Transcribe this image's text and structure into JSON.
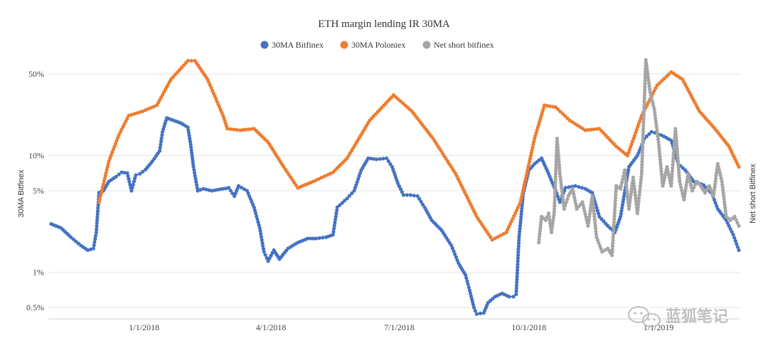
{
  "chart_data": {
    "type": "line",
    "title": "ETH margin lending IR 30MA",
    "ylabel": "30MA Bitfinex",
    "y2label": "Net short Bitfinex",
    "yscale": "log",
    "ylim": [
      0.4,
      70
    ],
    "yticks": [
      {
        "value": 0.5,
        "label": "0.5%"
      },
      {
        "value": 1,
        "label": "1%"
      },
      {
        "value": 5,
        "label": "5%"
      },
      {
        "value": 10,
        "label": "10%"
      },
      {
        "value": 50,
        "label": "50%"
      }
    ],
    "xlim": [
      "2017-10-25",
      "2019-02-28"
    ],
    "xticks": [
      {
        "value": "2018-01-01",
        "label": "1/1/2018"
      },
      {
        "value": "2018-04-01",
        "label": "4/1/2018"
      },
      {
        "value": "2018-07-01",
        "label": "7/1/2018"
      },
      {
        "value": "2018-10-01",
        "label": "10/1/2018"
      },
      {
        "value": "2019-01-01",
        "label": "1/1/2019"
      }
    ],
    "grid": true,
    "legend": "top-center",
    "series": [
      {
        "name": "30MA Bitfinex",
        "color": "#4472c4",
        "points": [
          [
            "2017-10-27",
            2.6
          ],
          [
            "2017-11-03",
            2.4
          ],
          [
            "2017-11-10",
            2.0
          ],
          [
            "2017-11-17",
            1.7
          ],
          [
            "2017-11-22",
            1.55
          ],
          [
            "2017-11-26",
            1.6
          ],
          [
            "2017-11-28",
            2.2
          ],
          [
            "2017-11-30",
            4.8
          ],
          [
            "2017-12-03",
            5.0
          ],
          [
            "2017-12-07",
            6.0
          ],
          [
            "2017-12-12",
            6.6
          ],
          [
            "2017-12-16",
            7.2
          ],
          [
            "2017-12-20",
            7.1
          ],
          [
            "2017-12-23",
            5.0
          ],
          [
            "2017-12-26",
            6.8
          ],
          [
            "2017-12-29",
            7.0
          ],
          [
            "2018-01-02",
            7.6
          ],
          [
            "2018-01-07",
            9.0
          ],
          [
            "2018-01-12",
            11.0
          ],
          [
            "2018-01-14",
            16.0
          ],
          [
            "2018-01-17",
            21.0
          ],
          [
            "2018-01-22",
            20.0
          ],
          [
            "2018-01-27",
            19.0
          ],
          [
            "2018-02-01",
            17.5
          ],
          [
            "2018-02-03",
            12.5
          ],
          [
            "2018-02-05",
            8.0
          ],
          [
            "2018-02-08",
            5.0
          ],
          [
            "2018-02-12",
            5.2
          ],
          [
            "2018-02-18",
            5.0
          ],
          [
            "2018-02-26",
            5.2
          ],
          [
            "2018-03-02",
            5.3
          ],
          [
            "2018-03-06",
            4.5
          ],
          [
            "2018-03-09",
            5.5
          ],
          [
            "2018-03-15",
            5.0
          ],
          [
            "2018-03-20",
            3.6
          ],
          [
            "2018-03-24",
            2.4
          ],
          [
            "2018-03-27",
            1.5
          ],
          [
            "2018-03-30",
            1.25
          ],
          [
            "2018-04-03",
            1.55
          ],
          [
            "2018-04-07",
            1.3
          ],
          [
            "2018-04-13",
            1.6
          ],
          [
            "2018-04-20",
            1.8
          ],
          [
            "2018-04-27",
            1.95
          ],
          [
            "2018-05-03",
            1.95
          ],
          [
            "2018-05-10",
            2.0
          ],
          [
            "2018-05-15",
            2.1
          ],
          [
            "2018-05-18",
            3.6
          ],
          [
            "2018-05-25",
            4.3
          ],
          [
            "2018-05-30",
            5.0
          ],
          [
            "2018-06-04",
            7.5
          ],
          [
            "2018-06-09",
            9.5
          ],
          [
            "2018-06-15",
            9.3
          ],
          [
            "2018-06-22",
            9.5
          ],
          [
            "2018-06-26",
            8.0
          ],
          [
            "2018-06-30",
            5.8
          ],
          [
            "2018-07-04",
            4.6
          ],
          [
            "2018-07-09",
            4.6
          ],
          [
            "2018-07-14",
            4.5
          ],
          [
            "2018-07-19",
            3.6
          ],
          [
            "2018-07-24",
            2.8
          ],
          [
            "2018-07-31",
            2.3
          ],
          [
            "2018-08-07",
            1.7
          ],
          [
            "2018-08-12",
            1.2
          ],
          [
            "2018-08-17",
            0.95
          ],
          [
            "2018-08-20",
            0.7
          ],
          [
            "2018-08-23",
            0.5
          ],
          [
            "2018-08-25",
            0.44
          ],
          [
            "2018-08-30",
            0.45
          ],
          [
            "2018-09-02",
            0.55
          ],
          [
            "2018-09-07",
            0.62
          ],
          [
            "2018-09-12",
            0.66
          ],
          [
            "2018-09-17",
            0.62
          ],
          [
            "2018-09-20",
            0.62
          ],
          [
            "2018-09-22",
            0.65
          ],
          [
            "2018-09-24",
            2.0
          ],
          [
            "2018-09-27",
            4.7
          ],
          [
            "2018-10-01",
            7.5
          ],
          [
            "2018-10-05",
            8.5
          ],
          [
            "2018-10-10",
            9.5
          ],
          [
            "2018-10-15",
            7.0
          ],
          [
            "2018-10-20",
            5.0
          ],
          [
            "2018-10-23",
            4.0
          ],
          [
            "2018-10-27",
            5.3
          ],
          [
            "2018-11-03",
            5.5
          ],
          [
            "2018-11-10",
            5.2
          ],
          [
            "2018-11-15",
            4.8
          ],
          [
            "2018-11-20",
            3.0
          ],
          [
            "2018-11-26",
            2.5
          ],
          [
            "2018-12-01",
            2.2
          ],
          [
            "2018-12-05",
            3.0
          ],
          [
            "2018-12-11",
            8.0
          ],
          [
            "2018-12-17",
            10.0
          ],
          [
            "2018-12-22",
            14.0
          ],
          [
            "2018-12-27",
            16.0
          ],
          [
            "2019-01-03",
            15.0
          ],
          [
            "2019-01-10",
            13.5
          ],
          [
            "2019-01-15",
            8.5
          ],
          [
            "2019-01-20",
            7.5
          ],
          [
            "2019-01-26",
            6.0
          ],
          [
            "2019-02-02",
            5.6
          ],
          [
            "2019-02-08",
            4.7
          ],
          [
            "2019-02-12",
            3.5
          ],
          [
            "2019-02-18",
            2.8
          ],
          [
            "2019-02-23",
            2.1
          ],
          [
            "2019-02-27",
            1.55
          ]
        ]
      },
      {
        "name": "30MA Poloniex",
        "color": "#ed7d31",
        "points": [
          [
            "2017-11-30",
            4.0
          ],
          [
            "2017-12-07",
            9.0
          ],
          [
            "2017-12-14",
            15.0
          ],
          [
            "2017-12-21",
            22.0
          ],
          [
            "2017-12-31",
            24.0
          ],
          [
            "2018-01-10",
            27.0
          ],
          [
            "2018-01-20",
            45.0
          ],
          [
            "2018-02-01",
            65.0
          ],
          [
            "2018-02-06",
            65.0
          ],
          [
            "2018-02-15",
            45.0
          ],
          [
            "2018-02-26",
            22.0
          ],
          [
            "2018-03-01",
            17.0
          ],
          [
            "2018-03-10",
            16.5
          ],
          [
            "2018-03-20",
            17.0
          ],
          [
            "2018-03-30",
            13.0
          ],
          [
            "2018-04-10",
            8.0
          ],
          [
            "2018-04-20",
            5.3
          ],
          [
            "2018-05-01",
            6.0
          ],
          [
            "2018-05-15",
            7.2
          ],
          [
            "2018-05-25",
            9.5
          ],
          [
            "2018-06-10",
            20.0
          ],
          [
            "2018-06-27",
            33.0
          ],
          [
            "2018-07-10",
            24.0
          ],
          [
            "2018-07-25",
            14.0
          ],
          [
            "2018-08-10",
            7.0
          ],
          [
            "2018-08-25",
            3.0
          ],
          [
            "2018-09-05",
            1.9
          ],
          [
            "2018-09-15",
            2.2
          ],
          [
            "2018-09-25",
            4.0
          ],
          [
            "2018-10-05",
            14.0
          ],
          [
            "2018-10-12",
            27.0
          ],
          [
            "2018-10-20",
            26.0
          ],
          [
            "2018-10-30",
            20.0
          ],
          [
            "2018-11-10",
            16.5
          ],
          [
            "2018-11-20",
            17.0
          ],
          [
            "2018-12-02",
            12.0
          ],
          [
            "2018-12-10",
            10.0
          ],
          [
            "2018-12-20",
            22.0
          ],
          [
            "2018-12-31",
            40.0
          ],
          [
            "2019-01-10",
            52.0
          ],
          [
            "2019-01-18",
            45.0
          ],
          [
            "2019-01-30",
            24.0
          ],
          [
            "2019-02-10",
            17.0
          ],
          [
            "2019-02-20",
            12.0
          ],
          [
            "2019-02-27",
            8.0
          ]
        ]
      },
      {
        "name": "Net short bitfinex",
        "color": "#a5a5a5",
        "points": [
          [
            "2018-10-08",
            1.8
          ],
          [
            "2018-10-10",
            3.0
          ],
          [
            "2018-10-13",
            2.8
          ],
          [
            "2018-10-15",
            3.2
          ],
          [
            "2018-10-17",
            2.2
          ],
          [
            "2018-10-19",
            3.3
          ],
          [
            "2018-10-21",
            14.0
          ],
          [
            "2018-10-23",
            7.0
          ],
          [
            "2018-10-26",
            3.5
          ],
          [
            "2018-10-29",
            4.5
          ],
          [
            "2018-11-01",
            5.2
          ],
          [
            "2018-11-04",
            3.5
          ],
          [
            "2018-11-08",
            4.0
          ],
          [
            "2018-11-12",
            2.5
          ],
          [
            "2018-11-15",
            4.5
          ],
          [
            "2018-11-18",
            2.0
          ],
          [
            "2018-11-22",
            1.5
          ],
          [
            "2018-11-26",
            1.6
          ],
          [
            "2018-11-29",
            1.4
          ],
          [
            "2018-12-02",
            5.5
          ],
          [
            "2018-12-05",
            5.2
          ],
          [
            "2018-12-08",
            7.5
          ],
          [
            "2018-12-11",
            3.5
          ],
          [
            "2018-12-14",
            6.5
          ],
          [
            "2018-12-17",
            3.2
          ],
          [
            "2018-12-20",
            7.0
          ],
          [
            "2018-12-23",
            66.0
          ],
          [
            "2018-12-26",
            35.0
          ],
          [
            "2018-12-29",
            25.0
          ],
          [
            "2019-01-01",
            13.0
          ],
          [
            "2019-01-04",
            5.5
          ],
          [
            "2019-01-07",
            8.0
          ],
          [
            "2019-01-10",
            5.5
          ],
          [
            "2019-01-13",
            17.0
          ],
          [
            "2019-01-16",
            6.0
          ],
          [
            "2019-01-19",
            4.2
          ],
          [
            "2019-01-22",
            7.0
          ],
          [
            "2019-01-25",
            5.0
          ],
          [
            "2019-01-28",
            6.0
          ],
          [
            "2019-01-31",
            5.5
          ],
          [
            "2019-02-03",
            4.8
          ],
          [
            "2019-02-06",
            5.5
          ],
          [
            "2019-02-09",
            4.5
          ],
          [
            "2019-02-12",
            8.5
          ],
          [
            "2019-02-15",
            6.0
          ],
          [
            "2019-02-18",
            3.0
          ],
          [
            "2019-02-21",
            2.8
          ],
          [
            "2019-02-24",
            3.0
          ],
          [
            "2019-02-27",
            2.5
          ]
        ]
      }
    ],
    "watermark": "蓝狐笔记"
  }
}
